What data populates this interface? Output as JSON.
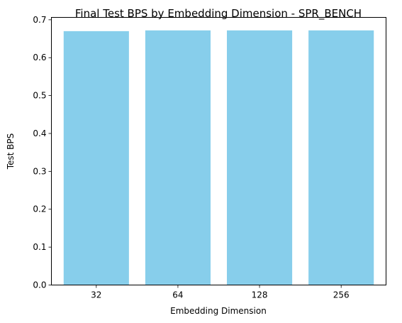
{
  "chart_data": {
    "type": "bar",
    "title": "Final Test BPS by Embedding Dimension - SPR_BENCH",
    "xlabel": "Embedding Dimension",
    "ylabel": "Test BPS",
    "categories": [
      "32",
      "64",
      "128",
      "256"
    ],
    "values": [
      0.67,
      0.672,
      0.672,
      0.672
    ],
    "ylim": [
      0,
      0.7063
    ],
    "yticks": [
      "0.0",
      "0.1",
      "0.2",
      "0.3",
      "0.4",
      "0.5",
      "0.6",
      "0.7"
    ],
    "bar_color": "#87ceeb",
    "grid": false
  }
}
